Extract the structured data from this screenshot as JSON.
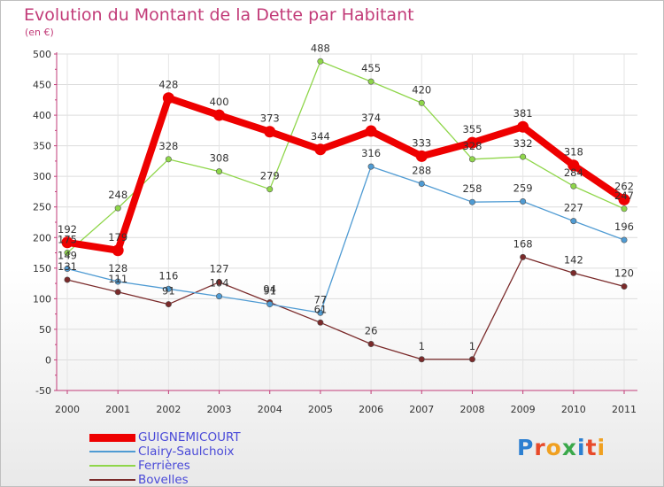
{
  "title": "Evolution du Montant de la Dette par Habitant",
  "unit": "(en €)",
  "logo": "Proxiti",
  "chart_data": {
    "type": "line",
    "categories": [
      "2000",
      "2001",
      "2002",
      "2003",
      "2004",
      "2005",
      "2006",
      "2007",
      "2008",
      "2009",
      "2010",
      "2011"
    ],
    "ylim": [
      -50,
      500
    ],
    "yticks": [
      -50,
      0,
      50,
      100,
      150,
      200,
      250,
      300,
      350,
      400,
      450,
      500
    ],
    "legend_position": "bottom-left",
    "series": [
      {
        "name": "GUIGNEMICOURT",
        "color": "#ee0000",
        "values": [
          192,
          179,
          428,
          400,
          373,
          344,
          374,
          333,
          355,
          381,
          318,
          262
        ]
      },
      {
        "name": "Clairy-Saulchoix",
        "color": "#4f9bd3",
        "values": [
          149,
          128,
          116,
          104,
          91,
          77,
          316,
          288,
          258,
          259,
          227,
          196
        ]
      },
      {
        "name": "Ferrières",
        "color": "#8fd64a",
        "values": [
          175,
          248,
          328,
          308,
          279,
          488,
          455,
          420,
          328,
          332,
          284,
          247
        ]
      },
      {
        "name": "Bovelles",
        "color": "#7a2a2a",
        "values": [
          131,
          111,
          91,
          127,
          94,
          61,
          26,
          1,
          1,
          168,
          142,
          120
        ]
      }
    ]
  }
}
